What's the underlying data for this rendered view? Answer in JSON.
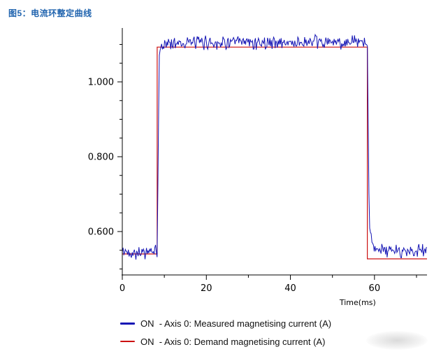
{
  "figure": {
    "caption": "图5：电流环整定曲线",
    "caption_color": "#1f63ae"
  },
  "chart_data": {
    "type": "line",
    "title": "图5：电流环整定曲线",
    "xlabel": "Time(ms)",
    "ylabel": "",
    "xlim": [
      0,
      72.5
    ],
    "ylim": [
      0.484,
      1.144
    ],
    "grid": false,
    "legend_position": "bottom",
    "axis_color": "#000000",
    "x_ticks": [
      {
        "value": 0,
        "label": "0"
      },
      {
        "value": 20,
        "label": "20"
      },
      {
        "value": 40,
        "label": "40"
      },
      {
        "value": 60,
        "label": "60"
      }
    ],
    "x_minor_ticks": [
      10,
      30,
      50,
      70
    ],
    "y_ticks": [
      {
        "value": 1.0,
        "label": "1.000"
      },
      {
        "value": 0.8,
        "label": "0.800"
      },
      {
        "value": 0.6,
        "label": "0.600"
      }
    ],
    "y_minor_ticks": [
      0.5,
      0.55,
      0.65,
      0.7,
      0.75,
      0.85,
      0.9,
      0.95,
      1.05,
      1.1
    ],
    "series": [
      {
        "name": "ON  - Axis 0: Measured magnetising current (A)",
        "color": "#1414b4",
        "style": "noisy-step",
        "baseline": 0.545,
        "high_level": 1.105,
        "settle_level": 0.548,
        "rise_start_ms": 8.3,
        "rise_time_ms": 0.5,
        "rise_knee_level": 1.08,
        "rise_tau_ms": 0.8,
        "fall_start_ms": 58.3,
        "fall_time_ms": 0.45,
        "fall_knee_level": 0.615,
        "fall_tau_ms": 0.9,
        "noise_amplitude": 0.022,
        "sample_step_ms": 0.18,
        "seed": 42
      },
      {
        "name": "ON  - Axis 0: Demand magnetising current (A)",
        "color": "#cc1111",
        "style": "step",
        "points": [
          [
            0,
            0.54
          ],
          [
            8.3,
            0.54
          ],
          [
            8.3,
            1.093
          ],
          [
            58.3,
            1.093
          ],
          [
            58.3,
            0.527
          ],
          [
            72.5,
            0.527
          ]
        ]
      }
    ]
  }
}
